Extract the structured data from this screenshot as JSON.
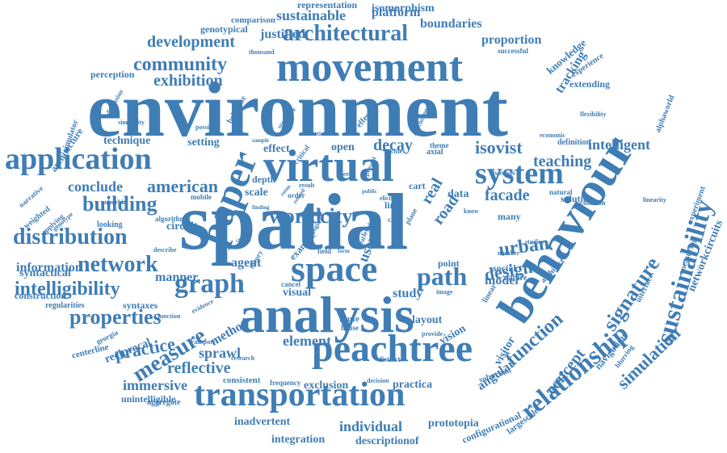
{
  "color": "#3f7db5",
  "words": [
    "environment",
    "spatial",
    "analysis",
    "movement",
    "virtual",
    "peachtree",
    "transportation",
    "application",
    "behaviour",
    "space",
    "paper",
    "system",
    "architectural",
    "relationship",
    "sustainability",
    "graph",
    "network",
    "distribution",
    "building",
    "intelligibility",
    "properties",
    "measure",
    "path",
    "city",
    "world",
    "urban",
    "design",
    "isovist",
    "function",
    "signature",
    "concept",
    "simulation",
    "community",
    "development",
    "exhibition",
    "sustainable",
    "boundaries",
    "platform",
    "representation",
    "isomorphism",
    "comparison",
    "genotypical",
    "justified",
    "proportion",
    "tracking",
    "knowledge",
    "successful",
    "experience",
    "extending",
    "perception",
    "information",
    "syntactical",
    "construction",
    "practice",
    "reflective",
    "immersive",
    "unintelligible",
    "aggregate",
    "sprawl",
    "method",
    "element",
    "model",
    "study",
    "visual",
    "exclusion",
    "individual",
    "integration",
    "prototopia",
    "descriptionof",
    "inadvertent",
    "angular",
    "configurational",
    "largescale",
    "visitor",
    "decay",
    "road",
    "facade",
    "teaching",
    "intelligent",
    "american",
    "conclude",
    "technique",
    "setting",
    "effect",
    "open",
    "depth",
    "scale",
    "agent",
    "manner",
    "syntaxes",
    "regularities",
    "centerline",
    "reciprocal",
    "narrative",
    "weighted",
    "applying",
    "genotype",
    "architecture",
    "simulator",
    "thousand",
    "navigation",
    "networkcircuits",
    "measuring",
    "experiment",
    "alphaworld",
    "flexibility",
    "interface",
    "linearity",
    "collision",
    "solution",
    "definition",
    "economic",
    "natural",
    "layout",
    "vision",
    "consistent",
    "frequency",
    "practica",
    "suburban",
    "georgia",
    "transport",
    "evidence",
    "circuit",
    "algorithm",
    "looking",
    "suburbia",
    "mobile",
    "similarity",
    "discussion",
    "possible",
    "behavior",
    "sample",
    "structure",
    "critical",
    "section",
    "cities",
    "theme",
    "axial",
    "cart",
    "data",
    "real",
    "user",
    "point",
    "social",
    "nature",
    "many",
    "number",
    "image",
    "route",
    "house",
    "cancel",
    "field",
    "examine",
    "dual",
    "plane",
    "case",
    "line",
    "know",
    "elicit",
    "public",
    "tiger",
    "order",
    "result",
    "room",
    "junction",
    "describe",
    "theory",
    "choice",
    "district",
    "provide",
    "decision",
    "research",
    "blurring",
    "architect",
    "linear",
    "studies",
    "present",
    "related",
    "finding",
    "meet",
    "effective",
    "conclusion",
    "isovists",
    "form",
    "logic",
    "level"
  ]
}
